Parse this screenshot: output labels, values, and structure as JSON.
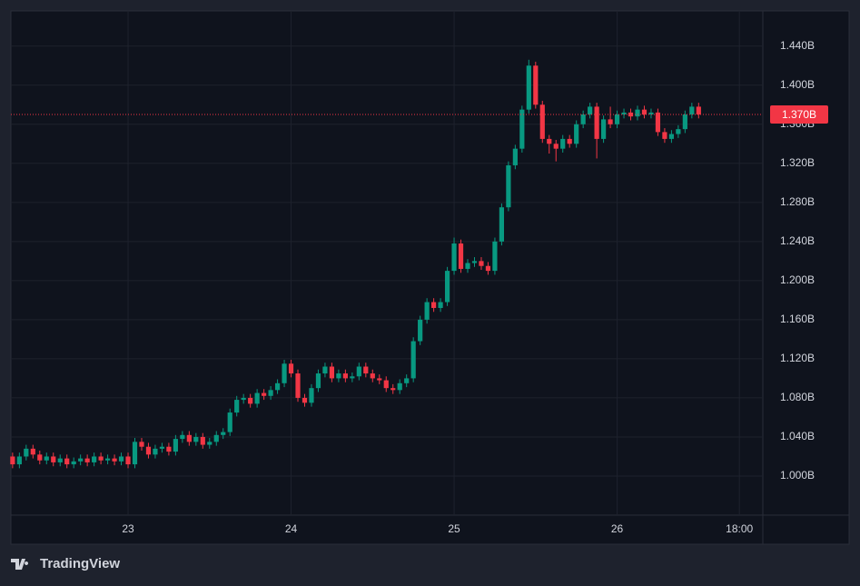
{
  "chart_data": {
    "type": "candlestick",
    "x": [
      7,
      8,
      9,
      10,
      11,
      12,
      13,
      14,
      15,
      16,
      17,
      18,
      19,
      20,
      21,
      22,
      23,
      24,
      25,
      26,
      27,
      28,
      29,
      30,
      31,
      32,
      33,
      34,
      35,
      36,
      37,
      38,
      39,
      40,
      41,
      42,
      43,
      44,
      45,
      46,
      47,
      48,
      49,
      50,
      51,
      52,
      53,
      54,
      55,
      56,
      57,
      58,
      59,
      60,
      61,
      62,
      63,
      64,
      65,
      66,
      67,
      68,
      69,
      70,
      71,
      72,
      73,
      74,
      75,
      76,
      77,
      78,
      79,
      80,
      81,
      82,
      83,
      84,
      85,
      86,
      87,
      88,
      89,
      90,
      91,
      92,
      93,
      94,
      95,
      96,
      97,
      98,
      99,
      100,
      101,
      102,
      103,
      104,
      105,
      106,
      107,
      108
    ],
    "open": [
      1.02,
      1.012,
      1.02,
      1.028,
      1.022,
      1.016,
      1.02,
      1.014,
      1.018,
      1.012,
      1.015,
      1.018,
      1.014,
      1.02,
      1.016,
      1.018,
      1.015,
      1.02,
      1.012,
      1.035,
      1.03,
      1.022,
      1.028,
      1.03,
      1.025,
      1.038,
      1.042,
      1.035,
      1.04,
      1.032,
      1.035,
      1.042,
      1.045,
      1.065,
      1.078,
      1.08,
      1.074,
      1.085,
      1.082,
      1.088,
      1.095,
      1.115,
      1.105,
      1.08,
      1.075,
      1.09,
      1.105,
      1.112,
      1.1,
      1.105,
      1.1,
      1.102,
      1.112,
      1.105,
      1.1,
      1.098,
      1.09,
      1.088,
      1.095,
      1.1,
      1.138,
      1.16,
      1.178,
      1.172,
      1.178,
      1.21,
      1.238,
      1.212,
      1.218,
      1.22,
      1.215,
      1.21,
      1.24,
      1.275,
      1.318,
      1.335,
      1.375,
      1.42,
      1.38,
      1.345,
      1.34,
      1.335,
      1.345,
      1.34,
      1.36,
      1.37,
      1.378,
      1.345,
      1.365,
      1.36,
      1.37,
      1.372,
      1.368,
      1.375,
      1.37,
      1.372,
      1.352,
      1.345,
      1.35,
      1.355,
      1.37,
      1.378
    ],
    "high": [
      1.024,
      1.024,
      1.032,
      1.032,
      1.026,
      1.024,
      1.024,
      1.022,
      1.022,
      1.019,
      1.022,
      1.022,
      1.024,
      1.024,
      1.022,
      1.022,
      1.024,
      1.024,
      1.039,
      1.039,
      1.034,
      1.032,
      1.034,
      1.034,
      1.042,
      1.046,
      1.046,
      1.044,
      1.044,
      1.039,
      1.046,
      1.049,
      1.069,
      1.082,
      1.084,
      1.084,
      1.089,
      1.089,
      1.092,
      1.099,
      1.119,
      1.119,
      1.109,
      1.084,
      1.094,
      1.109,
      1.116,
      1.116,
      1.109,
      1.109,
      1.106,
      1.116,
      1.116,
      1.109,
      1.104,
      1.102,
      1.094,
      1.099,
      1.104,
      1.142,
      1.164,
      1.182,
      1.182,
      1.182,
      1.214,
      1.244,
      1.242,
      1.222,
      1.224,
      1.224,
      1.219,
      1.244,
      1.279,
      1.322,
      1.339,
      1.379,
      1.426,
      1.424,
      1.384,
      1.349,
      1.344,
      1.349,
      1.349,
      1.364,
      1.374,
      1.382,
      1.382,
      1.369,
      1.378,
      1.374,
      1.376,
      1.376,
      1.379,
      1.379,
      1.376,
      1.376,
      1.356,
      1.354,
      1.359,
      1.374,
      1.382,
      1.382
    ],
    "low": [
      1.008,
      1.008,
      1.016,
      1.018,
      1.012,
      1.012,
      1.01,
      1.01,
      1.008,
      1.008,
      1.011,
      1.01,
      1.01,
      1.012,
      1.012,
      1.011,
      1.011,
      1.008,
      1.008,
      1.026,
      1.018,
      1.018,
      1.024,
      1.021,
      1.021,
      1.034,
      1.031,
      1.031,
      1.028,
      1.028,
      1.031,
      1.038,
      1.041,
      1.061,
      1.074,
      1.07,
      1.07,
      1.078,
      1.078,
      1.084,
      1.091,
      1.101,
      1.076,
      1.071,
      1.071,
      1.086,
      1.101,
      1.096,
      1.096,
      1.096,
      1.096,
      1.098,
      1.101,
      1.096,
      1.094,
      1.086,
      1.084,
      1.084,
      1.091,
      1.096,
      1.134,
      1.156,
      1.168,
      1.168,
      1.174,
      1.206,
      1.208,
      1.208,
      1.214,
      1.211,
      1.206,
      1.206,
      1.236,
      1.271,
      1.314,
      1.331,
      1.371,
      1.376,
      1.341,
      1.33,
      1.322,
      1.331,
      1.336,
      1.336,
      1.356,
      1.366,
      1.325,
      1.341,
      1.356,
      1.356,
      1.366,
      1.364,
      1.364,
      1.366,
      1.366,
      1.348,
      1.341,
      1.341,
      1.346,
      1.351,
      1.366,
      1.366
    ],
    "close": [
      1.012,
      1.02,
      1.028,
      1.022,
      1.016,
      1.02,
      1.014,
      1.018,
      1.012,
      1.015,
      1.018,
      1.014,
      1.02,
      1.016,
      1.018,
      1.015,
      1.02,
      1.012,
      1.035,
      1.03,
      1.022,
      1.028,
      1.03,
      1.025,
      1.038,
      1.042,
      1.035,
      1.04,
      1.032,
      1.035,
      1.042,
      1.045,
      1.065,
      1.078,
      1.08,
      1.074,
      1.085,
      1.082,
      1.088,
      1.095,
      1.115,
      1.105,
      1.08,
      1.075,
      1.09,
      1.105,
      1.112,
      1.1,
      1.105,
      1.1,
      1.102,
      1.112,
      1.105,
      1.1,
      1.098,
      1.09,
      1.088,
      1.095,
      1.1,
      1.138,
      1.16,
      1.178,
      1.172,
      1.178,
      1.21,
      1.238,
      1.212,
      1.218,
      1.22,
      1.215,
      1.21,
      1.24,
      1.275,
      1.318,
      1.335,
      1.375,
      1.42,
      1.38,
      1.345,
      1.34,
      1.335,
      1.345,
      1.34,
      1.36,
      1.37,
      1.378,
      1.345,
      1.365,
      1.36,
      1.37,
      1.372,
      1.368,
      1.375,
      1.37,
      1.372,
      1.352,
      1.345,
      1.35,
      1.355,
      1.37,
      1.378,
      1.37
    ],
    "up_color": "#089981",
    "down_color": "#f23645",
    "xlim": [
      6.75,
      117.45
    ],
    "xticks": [
      {
        "value": 24,
        "label": "23"
      },
      {
        "value": 48,
        "label": "24"
      },
      {
        "value": 72,
        "label": "25"
      },
      {
        "value": 96,
        "label": "26"
      },
      {
        "value": 114,
        "label": "18:00"
      }
    ],
    "ylim": [
      0.96,
      1.476
    ],
    "yticks": [
      {
        "value": 1.0,
        "label": "1.000B"
      },
      {
        "value": 1.04,
        "label": "1.040B"
      },
      {
        "value": 1.08,
        "label": "1.080B"
      },
      {
        "value": 1.12,
        "label": "1.120B"
      },
      {
        "value": 1.16,
        "label": "1.160B"
      },
      {
        "value": 1.2,
        "label": "1.200B"
      },
      {
        "value": 1.24,
        "label": "1.240B"
      },
      {
        "value": 1.28,
        "label": "1.280B"
      },
      {
        "value": 1.32,
        "label": "1.320B"
      },
      {
        "value": 1.36,
        "label": "1.360B"
      },
      {
        "value": 1.4,
        "label": "1.400B"
      },
      {
        "value": 1.44,
        "label": "1.440B"
      }
    ],
    "last_price": {
      "value": 1.37,
      "label": "1.370B"
    },
    "grid": true
  },
  "branding": "TradingView"
}
